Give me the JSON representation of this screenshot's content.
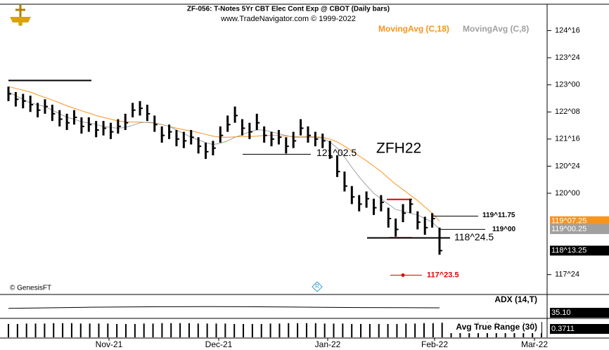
{
  "chart_data": {
    "type": "ohlc",
    "title": "ZF-056:  T-Notes 5Yr CBT Elec Cont Exp @ CBOT  (Daily bars)",
    "subtitle": "www.TradeNavigator.com © 1999-2022",
    "watermark": "© GenesisFT",
    "symbol": "ZFH22",
    "date_labels": [
      "Nov-21",
      "Dec-21",
      "Jan-22",
      "Feb-22",
      "Mar-22"
    ],
    "ylim": [
      117.2,
      125.23
    ],
    "yticks": [
      {
        "value": 124.5,
        "label": "124^16"
      },
      {
        "value": 123.75,
        "label": "123^24"
      },
      {
        "value": 123,
        "label": "123^00"
      },
      {
        "value": 122.25,
        "label": "122^08"
      },
      {
        "value": 121.5,
        "label": "121^16"
      },
      {
        "value": 120.75,
        "label": "120^24"
      },
      {
        "value": 120,
        "label": "120^00"
      },
      {
        "value": 117.75,
        "label": "117^24"
      }
    ],
    "bar_color": "#000000",
    "high": [
      122.95,
      122.8,
      122.75,
      122.7,
      122.5,
      122.6,
      122.45,
      122.3,
      122.2,
      122.3,
      122.1,
      122.1,
      122.0,
      122.0,
      121.95,
      122.05,
      122.2,
      122.5,
      122.55,
      122.45,
      122.15,
      121.85,
      121.9,
      121.75,
      121.7,
      121.75,
      121.55,
      121.4,
      121.45,
      121.85,
      122.15,
      122.4,
      122.05,
      121.95,
      122.2,
      121.85,
      121.7,
      121.75,
      121.55,
      121.7,
      122.05,
      121.85,
      121.7,
      121.65,
      121.45,
      121.05,
      120.6,
      120.2,
      119.95,
      120.05,
      119.85,
      119.95,
      119.6,
      119.3,
      119.7,
      119.85,
      119.5,
      119.35,
      119.45,
      119.05
    ],
    "low": [
      122.55,
      122.4,
      122.35,
      122.25,
      122.1,
      122.2,
      122.0,
      121.85,
      121.75,
      121.9,
      121.65,
      121.7,
      121.55,
      121.6,
      121.5,
      121.65,
      121.75,
      122.1,
      122.15,
      122.0,
      121.7,
      121.4,
      121.5,
      121.3,
      121.25,
      121.35,
      121.1,
      120.95,
      121.05,
      121.4,
      121.7,
      121.95,
      121.6,
      121.5,
      121.75,
      121.4,
      121.3,
      121.35,
      121.1,
      121.25,
      121.6,
      121.4,
      121.3,
      121.25,
      120.95,
      120.45,
      120.05,
      119.7,
      119.5,
      119.6,
      119.4,
      119.5,
      119.05,
      118.8,
      119.2,
      119.45,
      119.0,
      118.85,
      119.05,
      118.3
    ],
    "close": [
      122.75,
      122.6,
      122.55,
      122.45,
      122.3,
      122.4,
      122.2,
      122.05,
      121.95,
      122.1,
      121.85,
      121.9,
      121.75,
      121.8,
      121.7,
      121.85,
      121.95,
      122.3,
      122.35,
      122.2,
      121.9,
      121.6,
      121.7,
      121.5,
      121.45,
      121.55,
      121.3,
      121.15,
      121.25,
      121.6,
      121.9,
      122.15,
      121.8,
      121.7,
      121.95,
      121.6,
      121.5,
      121.55,
      121.3,
      121.45,
      121.8,
      121.6,
      121.5,
      121.45,
      121.0,
      120.6,
      120.2,
      119.9,
      119.7,
      119.85,
      119.6,
      119.75,
      119.3,
      119.0,
      119.45,
      119.7,
      119.2,
      119.05,
      119.3,
      118.414
    ],
    "series": [
      {
        "name": "MovingAvg (C,18)",
        "color": "#f7941d",
        "values": [
          122.95,
          122.9,
          122.85,
          122.8,
          122.72,
          122.65,
          122.58,
          122.5,
          122.42,
          122.35,
          122.28,
          122.22,
          122.15,
          122.1,
          122.05,
          122.0,
          121.98,
          121.97,
          121.97,
          121.96,
          121.94,
          121.9,
          121.85,
          121.8,
          121.76,
          121.72,
          121.68,
          121.63,
          121.58,
          121.55,
          121.55,
          121.56,
          121.57,
          121.57,
          121.58,
          121.6,
          121.6,
          121.6,
          121.58,
          121.57,
          121.56,
          121.57,
          121.56,
          121.55,
          121.5,
          121.42,
          121.3,
          121.17,
          121.03,
          120.9,
          120.75,
          120.6,
          120.42,
          120.25,
          120.1,
          119.95,
          119.8,
          119.62,
          119.45,
          119.227
        ]
      },
      {
        "name": "MovingAvg (C,8)",
        "color": "#a0a0a0",
        "values": [
          122.8,
          122.7,
          122.6,
          122.5,
          122.45,
          122.4,
          122.3,
          122.2,
          122.1,
          122.05,
          121.98,
          121.95,
          121.9,
          121.85,
          121.82,
          121.8,
          121.82,
          121.88,
          121.95,
          121.97,
          121.95,
          121.9,
          121.85,
          121.75,
          121.65,
          121.55,
          121.48,
          121.4,
          121.35,
          121.38,
          121.45,
          121.55,
          121.62,
          121.7,
          121.75,
          121.75,
          121.7,
          121.65,
          121.6,
          121.55,
          121.55,
          121.55,
          121.55,
          121.52,
          121.42,
          121.25,
          121.0,
          120.72,
          120.45,
          120.22,
          120.0,
          119.85,
          119.7,
          119.55,
          119.5,
          119.45,
          119.4,
          119.3,
          119.2,
          119.008
        ]
      }
    ],
    "price_tags": [
      {
        "label": "119^07.25",
        "value": 119.227,
        "color": "#f7941d"
      },
      {
        "label": "119^00.25",
        "value": 119.008,
        "color": "#a0a0a0"
      },
      {
        "label": "118^13.25",
        "value": 118.414,
        "color": "#000000"
      }
    ],
    "annotations": [
      {
        "label": "121^02.5",
        "value": 121.078,
        "color": "#000000"
      },
      {
        "label": "119^11.75",
        "value": 119.367,
        "color": "#000000"
      },
      {
        "label": "119^00",
        "value": 119.0,
        "color": "#000000"
      },
      {
        "label": "118^24.5",
        "value": 118.766,
        "color": "#000000"
      },
      {
        "label": "117^23.5",
        "value": 117.734,
        "color": "#e00000"
      }
    ],
    "levels": [
      {
        "value": 123.12,
        "color": "#000000"
      },
      {
        "value": 119.83,
        "color": "#e00000"
      },
      {
        "value": 118.77,
        "color": "#e00000"
      }
    ],
    "adx": {
      "name": "ADX (14,T)",
      "value_label": "35.10",
      "ylim": [
        0,
        80
      ],
      "values": [
        33,
        35,
        37,
        38,
        39,
        39.5,
        39,
        38,
        37,
        36,
        35.5,
        35.1
      ]
    },
    "atr": {
      "name": "Avg True Range (30)",
      "value_label": "0.3711",
      "ylim": [
        0,
        0.45
      ],
      "values": [
        0.33,
        0.33,
        0.34,
        0.34,
        0.34,
        0.35,
        0.35,
        0.35,
        0.34,
        0.34,
        0.34,
        0.34,
        0.33,
        0.33,
        0.33,
        0.34,
        0.34,
        0.35,
        0.35,
        0.35,
        0.35,
        0.34,
        0.34,
        0.34,
        0.34,
        0.33,
        0.33,
        0.33,
        0.33,
        0.34,
        0.34,
        0.35,
        0.35,
        0.35,
        0.35,
        0.34,
        0.34,
        0.34,
        0.33,
        0.33,
        0.33,
        0.33,
        0.33,
        0.33,
        0.34,
        0.34,
        0.35,
        0.35,
        0.36,
        0.36,
        0.36,
        0.36,
        0.37,
        0.37,
        0.37,
        0.37,
        0.37,
        0.37,
        0.37,
        0.3711
      ]
    }
  }
}
